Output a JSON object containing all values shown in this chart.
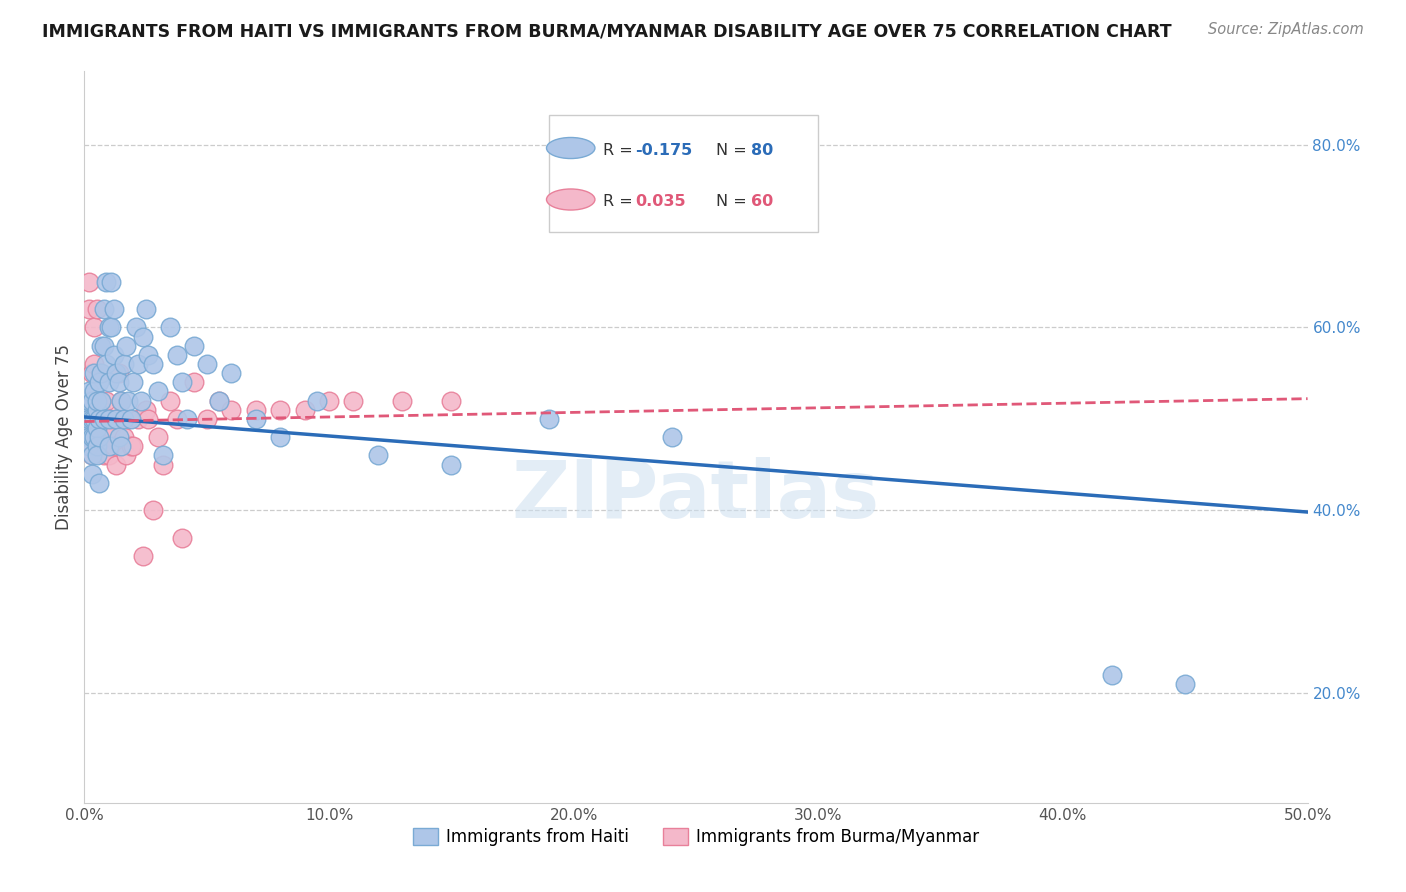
{
  "title": "IMMIGRANTS FROM HAITI VS IMMIGRANTS FROM BURMA/MYANMAR DISABILITY AGE OVER 75 CORRELATION CHART",
  "source": "Source: ZipAtlas.com",
  "ylabel": "Disability Age Over 75",
  "xlim": [
    0.0,
    0.5
  ],
  "ylim": [
    0.08,
    0.88
  ],
  "haiti_color": "#aec6e8",
  "haiti_edge_color": "#7aaad4",
  "burma_color": "#f4b8ca",
  "burma_edge_color": "#e8809a",
  "haiti_line_color": "#2b6cb8",
  "burma_line_color": "#e05878",
  "watermark": "ZIPatlas",
  "haiti_line_x0": 0.0,
  "haiti_line_y0": 0.502,
  "haiti_line_x1": 0.5,
  "haiti_line_y1": 0.398,
  "burma_line_x0": 0.0,
  "burma_line_y0": 0.497,
  "burma_line_x1": 0.5,
  "burma_line_y1": 0.522,
  "haiti_x": [
    0.001,
    0.001,
    0.001,
    0.002,
    0.002,
    0.002,
    0.002,
    0.002,
    0.003,
    0.003,
    0.003,
    0.003,
    0.003,
    0.004,
    0.004,
    0.004,
    0.004,
    0.005,
    0.005,
    0.005,
    0.005,
    0.005,
    0.006,
    0.006,
    0.006,
    0.006,
    0.007,
    0.007,
    0.007,
    0.008,
    0.008,
    0.008,
    0.009,
    0.009,
    0.01,
    0.01,
    0.01,
    0.01,
    0.011,
    0.011,
    0.012,
    0.012,
    0.013,
    0.013,
    0.014,
    0.014,
    0.015,
    0.015,
    0.016,
    0.016,
    0.017,
    0.018,
    0.019,
    0.02,
    0.021,
    0.022,
    0.023,
    0.024,
    0.025,
    0.026,
    0.028,
    0.03,
    0.032,
    0.035,
    0.038,
    0.04,
    0.042,
    0.045,
    0.05,
    0.055,
    0.06,
    0.07,
    0.08,
    0.095,
    0.12,
    0.15,
    0.19,
    0.24,
    0.42,
    0.45
  ],
  "haiti_y": [
    0.5,
    0.49,
    0.51,
    0.52,
    0.5,
    0.48,
    0.47,
    0.53,
    0.5,
    0.52,
    0.48,
    0.46,
    0.44,
    0.53,
    0.5,
    0.48,
    0.55,
    0.51,
    0.49,
    0.47,
    0.52,
    0.46,
    0.54,
    0.5,
    0.48,
    0.43,
    0.58,
    0.55,
    0.52,
    0.62,
    0.58,
    0.5,
    0.65,
    0.56,
    0.6,
    0.54,
    0.5,
    0.47,
    0.65,
    0.6,
    0.62,
    0.57,
    0.55,
    0.5,
    0.54,
    0.48,
    0.52,
    0.47,
    0.56,
    0.5,
    0.58,
    0.52,
    0.5,
    0.54,
    0.6,
    0.56,
    0.52,
    0.59,
    0.62,
    0.57,
    0.56,
    0.53,
    0.46,
    0.6,
    0.57,
    0.54,
    0.5,
    0.58,
    0.56,
    0.52,
    0.55,
    0.5,
    0.48,
    0.52,
    0.46,
    0.45,
    0.5,
    0.48,
    0.22,
    0.21
  ],
  "burma_x": [
    0.001,
    0.001,
    0.001,
    0.002,
    0.002,
    0.002,
    0.002,
    0.003,
    0.003,
    0.003,
    0.003,
    0.004,
    0.004,
    0.004,
    0.005,
    0.005,
    0.005,
    0.006,
    0.006,
    0.007,
    0.007,
    0.007,
    0.008,
    0.008,
    0.009,
    0.009,
    0.01,
    0.01,
    0.011,
    0.012,
    0.012,
    0.013,
    0.014,
    0.015,
    0.016,
    0.017,
    0.018,
    0.019,
    0.02,
    0.022,
    0.024,
    0.025,
    0.026,
    0.028,
    0.03,
    0.032,
    0.035,
    0.038,
    0.04,
    0.045,
    0.05,
    0.055,
    0.06,
    0.07,
    0.08,
    0.09,
    0.1,
    0.11,
    0.13,
    0.15
  ],
  "burma_y": [
    0.49,
    0.52,
    0.47,
    0.62,
    0.65,
    0.5,
    0.48,
    0.55,
    0.51,
    0.48,
    0.46,
    0.6,
    0.56,
    0.52,
    0.5,
    0.47,
    0.62,
    0.52,
    0.48,
    0.55,
    0.51,
    0.48,
    0.49,
    0.46,
    0.52,
    0.48,
    0.5,
    0.46,
    0.49,
    0.5,
    0.47,
    0.45,
    0.55,
    0.52,
    0.48,
    0.46,
    0.5,
    0.47,
    0.47,
    0.5,
    0.35,
    0.51,
    0.5,
    0.4,
    0.48,
    0.45,
    0.52,
    0.5,
    0.37,
    0.54,
    0.5,
    0.52,
    0.51,
    0.51,
    0.51,
    0.51,
    0.52,
    0.52,
    0.52,
    0.52
  ]
}
